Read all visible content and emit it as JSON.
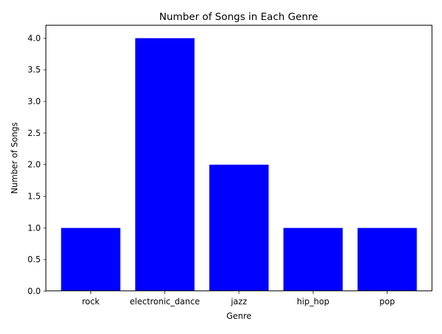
{
  "chart_data": {
    "type": "bar",
    "title": "Number of Songs in Each Genre",
    "xlabel": "Genre",
    "ylabel": "Number of Songs",
    "categories": [
      "rock",
      "electronic_dance",
      "jazz",
      "hip_hop",
      "pop"
    ],
    "values": [
      1,
      4,
      2,
      1,
      1
    ],
    "ylim": [
      0,
      4.2
    ],
    "yticks": [
      "0.0",
      "0.5",
      "1.0",
      "1.5",
      "2.0",
      "2.5",
      "3.0",
      "3.5",
      "4.0"
    ],
    "bar_color": "#0000ff",
    "grid": false,
    "legend": false
  }
}
